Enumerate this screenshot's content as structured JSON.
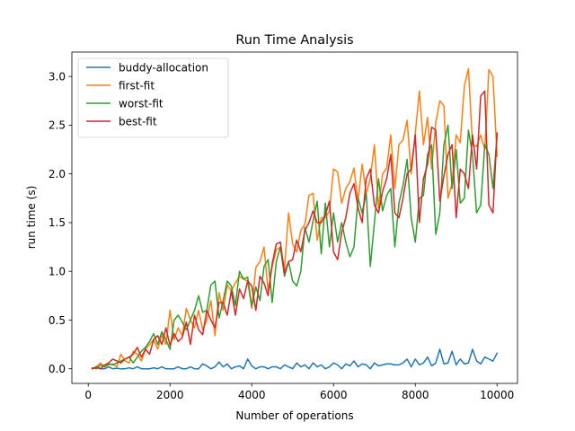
{
  "chart_data": {
    "type": "line",
    "title": "Run Time Analysis",
    "xlabel": "Number of operations",
    "ylabel": "run time (s)",
    "xlim": [
      -400,
      10500
    ],
    "ylim": [
      -0.15,
      3.25
    ],
    "xticks": [
      0,
      2000,
      4000,
      6000,
      8000,
      10000
    ],
    "yticks": [
      0.0,
      0.5,
      1.0,
      1.5,
      2.0,
      2.5,
      3.0
    ],
    "xtick_labels": [
      "0",
      "2000",
      "4000",
      "6000",
      "8000",
      "10000"
    ],
    "ytick_labels": [
      "0.0",
      "0.5",
      "1.0",
      "1.5",
      "2.0",
      "2.5",
      "3.0"
    ],
    "grid": false,
    "legend_position": "upper left",
    "x": {
      "start": 100,
      "step": 100,
      "count": 100
    },
    "series": [
      {
        "name": "buddy-allocation",
        "color": "#1f77b4",
        "values": [
          0.005,
          0.01,
          0.0,
          0.0,
          0.02,
          0.0,
          0.005,
          0.0,
          0.0,
          0.01,
          0.0,
          0.02,
          0.0,
          0.0,
          0.0,
          0.01,
          0.0,
          0.02,
          0.0,
          0.0,
          0.0,
          0.02,
          0.0,
          0.0,
          0.02,
          0.0,
          0.0,
          0.05,
          0.03,
          0.0,
          0.02,
          0.07,
          0.02,
          0.05,
          0.0,
          0.02,
          0.03,
          0.0,
          0.1,
          0.03,
          0.0,
          0.02,
          0.02,
          0.0,
          0.02,
          0.02,
          0.0,
          0.04,
          0.02,
          0.0,
          0.06,
          0.02,
          0.04,
          0.0,
          0.06,
          0.02,
          0.04,
          0.0,
          0.02,
          0.06,
          0.04,
          0.0,
          0.05,
          0.03,
          0.08,
          0.02,
          0.05,
          0.04,
          0.0,
          0.06,
          0.03,
          0.04,
          0.05,
          0.05,
          0.04,
          0.04,
          0.06,
          0.1,
          0.02,
          0.1,
          0.04,
          0.06,
          0.12,
          0.03,
          0.06,
          0.2,
          0.05,
          0.06,
          0.18,
          0.04,
          0.1,
          0.05,
          0.06,
          0.2,
          0.08,
          0.05,
          0.12,
          0.1,
          0.08,
          0.16
        ]
      },
      {
        "name": "first-fit",
        "color": "#ff7f0e",
        "values": [
          0.0,
          0.02,
          0.06,
          0.02,
          0.04,
          0.05,
          0.02,
          0.15,
          0.08,
          0.06,
          0.18,
          0.15,
          0.08,
          0.2,
          0.25,
          0.3,
          0.2,
          0.35,
          0.25,
          0.6,
          0.3,
          0.42,
          0.34,
          0.62,
          0.5,
          0.42,
          0.6,
          0.4,
          0.5,
          0.7,
          0.34,
          0.78,
          0.6,
          0.86,
          0.8,
          0.88,
          0.95,
          0.92,
          0.9,
          0.62,
          1.04,
          1.1,
          1.25,
          0.8,
          1.05,
          1.22,
          1.25,
          1.02,
          1.6,
          1.28,
          1.2,
          1.42,
          1.48,
          1.78,
          1.8,
          1.32,
          1.55,
          1.55,
          1.62,
          2.05,
          2.02,
          1.7,
          1.85,
          1.92,
          2.06,
          1.72,
          2.1,
          1.8,
          1.95,
          2.3,
          1.65,
          2.0,
          2.06,
          2.4,
          1.85,
          2.3,
          2.35,
          2.55,
          2.0,
          2.42,
          2.85,
          2.3,
          2.58,
          2.05,
          2.52,
          2.75,
          2.7,
          1.75,
          1.9,
          2.4,
          2.32,
          2.9,
          3.08,
          2.3,
          2.28,
          2.4,
          2.25,
          3.07,
          3.0,
          2.18
        ]
      },
      {
        "name": "worst-fit",
        "color": "#2ca02c",
        "values": [
          0.01,
          0.0,
          0.04,
          0.02,
          0.05,
          0.04,
          0.06,
          0.08,
          0.1,
          0.12,
          0.06,
          0.12,
          0.18,
          0.22,
          0.28,
          0.36,
          0.25,
          0.38,
          0.3,
          0.2,
          0.5,
          0.55,
          0.48,
          0.4,
          0.5,
          0.6,
          0.75,
          0.58,
          0.6,
          0.86,
          0.9,
          0.52,
          0.7,
          0.9,
          0.85,
          0.65,
          1.0,
          0.92,
          0.94,
          0.64,
          0.84,
          0.7,
          1.05,
          1.12,
          0.68,
          1.1,
          1.25,
          0.95,
          1.1,
          0.9,
          0.85,
          1.0,
          1.45,
          1.3,
          1.52,
          1.72,
          1.18,
          1.7,
          1.25,
          1.6,
          1.3,
          1.5,
          1.3,
          1.15,
          1.25,
          1.75,
          1.6,
          1.8,
          1.05,
          1.5,
          1.95,
          1.62,
          1.78,
          1.85,
          1.25,
          1.7,
          1.88,
          2.15,
          1.55,
          1.3,
          1.75,
          1.78,
          2.2,
          2.3,
          1.38,
          1.6,
          2.3,
          2.5,
          1.85,
          2.25,
          1.7,
          1.75,
          2.45,
          2.2,
          1.6,
          1.68,
          2.3,
          2.2,
          1.85,
          2.4
        ]
      },
      {
        "name": "best-fit",
        "color": "#d62728",
        "values": [
          0.0,
          0.02,
          0.0,
          0.04,
          0.06,
          0.1,
          0.08,
          0.06,
          0.1,
          0.12,
          0.15,
          0.22,
          0.12,
          0.2,
          0.15,
          0.3,
          0.34,
          0.25,
          0.42,
          0.24,
          0.36,
          0.28,
          0.32,
          0.48,
          0.25,
          0.55,
          0.4,
          0.35,
          0.6,
          0.5,
          0.42,
          0.68,
          0.68,
          0.55,
          0.8,
          0.55,
          0.82,
          0.72,
          0.9,
          0.85,
          0.6,
          0.95,
          0.88,
          0.75,
          1.08,
          1.28,
          1.3,
          0.98,
          1.1,
          1.12,
          1.32,
          1.2,
          1.42,
          1.5,
          1.62,
          1.5,
          1.5,
          1.58,
          1.72,
          1.2,
          1.12,
          1.4,
          1.55,
          1.8,
          1.9,
          1.65,
          1.5,
          1.95,
          2.05,
          1.68,
          1.6,
          1.82,
          1.95,
          2.2,
          1.6,
          1.55,
          1.75,
          2.0,
          2.05,
          2.4,
          1.5,
          1.95,
          2.1,
          2.48,
          2.45,
          1.72,
          1.98,
          2.2,
          2.3,
          1.55,
          2.05,
          2.0,
          1.85,
          2.4,
          2.05,
          2.8,
          2.85,
          1.68,
          1.6,
          2.42
        ]
      }
    ]
  }
}
